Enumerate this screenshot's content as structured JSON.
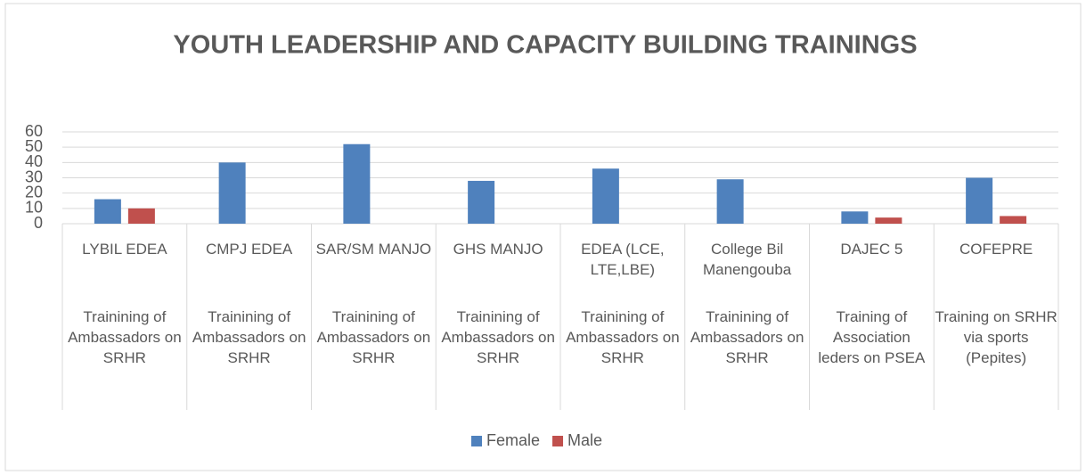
{
  "chart_data": {
    "type": "bar",
    "title": "YOUTH LEADERSHIP AND CAPACITY BUILDING TRAININGS",
    "categories": [
      "LYBIL EDEA",
      "CMPJ EDEA",
      "SAR/SM MANJO",
      "GHS MANJO",
      "EDEA (LCE, LTE,LBE)",
      "College Bil Manengouba",
      "DAJEC 5",
      "COFEPRE"
    ],
    "category_groups": [
      "Trainining of Ambassadors on SRHR",
      "Trainining of Ambassadors on SRHR",
      "Trainining of Ambassadors on SRHR",
      "Trainining of Ambassadors on SRHR",
      "Trainining of Ambassadors on SRHR",
      "Trainining of Ambassadors on SRHR",
      "Training of Association leders on PSEA",
      "Training on SRHR via sports (Pepites)"
    ],
    "series": [
      {
        "name": "Female",
        "color": "#4f81bd",
        "values": [
          16,
          40,
          52,
          28,
          36,
          29,
          8,
          30
        ]
      },
      {
        "name": "Male",
        "color": "#c0504d",
        "values": [
          10,
          null,
          null,
          null,
          null,
          null,
          4,
          5
        ]
      }
    ],
    "ylim": [
      0,
      60
    ],
    "yticks": [
      0,
      10,
      20,
      30,
      40,
      50,
      60
    ],
    "grid": true,
    "legend": "bottom"
  }
}
